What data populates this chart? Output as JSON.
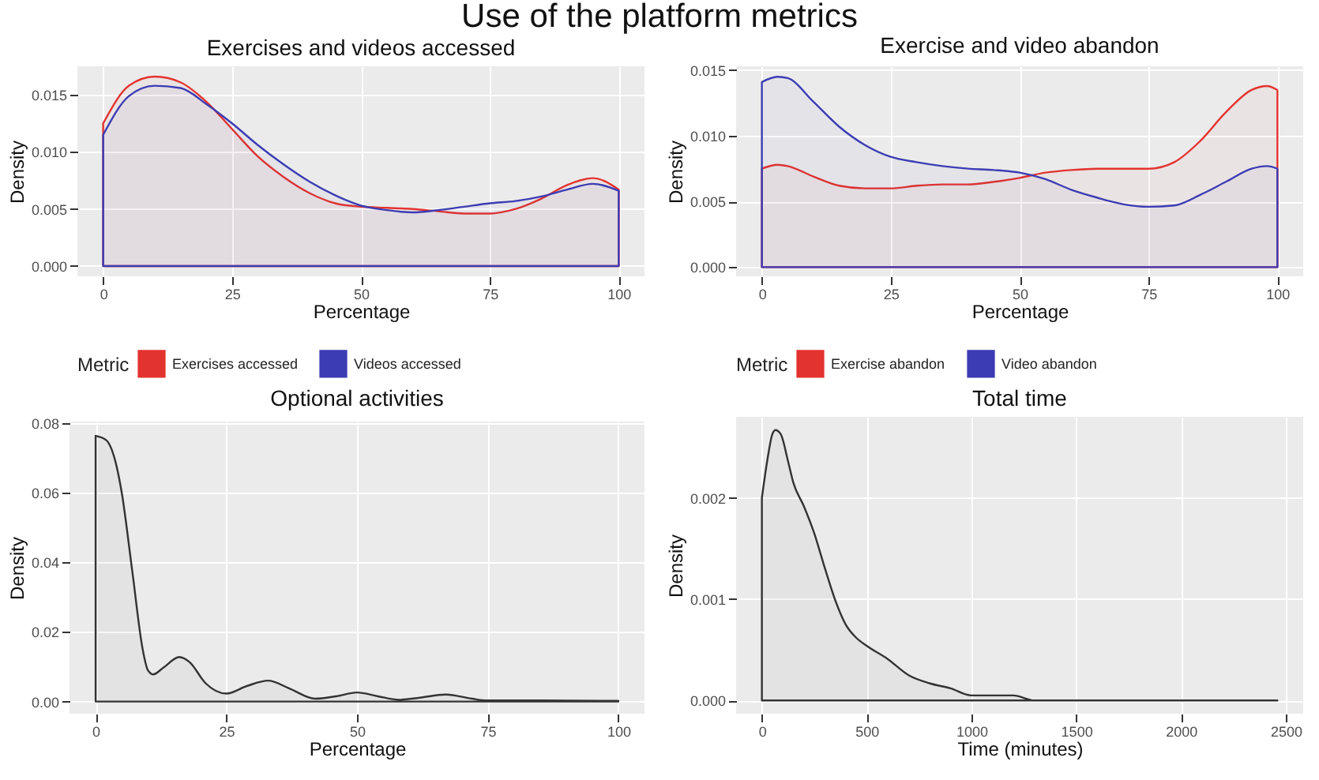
{
  "chart_data": [
    {
      "type": "area",
      "title": "Exercises and videos accessed",
      "xlabel": "Percentage",
      "ylabel": "Density",
      "legend_title": "Metric",
      "legend": "bottom",
      "grid": true,
      "annotations": [
        "Use of the platform metrics"
      ],
      "x": [
        0,
        5,
        10,
        15,
        20,
        25,
        30,
        35,
        40,
        45,
        50,
        55,
        60,
        65,
        70,
        75,
        80,
        85,
        90,
        95,
        100
      ],
      "xlim": [
        -5,
        105
      ],
      "xticks": [
        0,
        25,
        50,
        75,
        100
      ],
      "ylim": [
        -0.0009,
        0.0175
      ],
      "yticks": [
        {
          "value": 0,
          "label": "0.000"
        },
        0.005,
        {
          "value": 0.01,
          "label": "0.010"
        },
        0.015
      ],
      "series": [
        {
          "name": "Exercises accessed",
          "color": "#e3332f",
          "values": [
            0.0125,
            0.0158,
            0.0166,
            0.0161,
            0.0144,
            0.012,
            0.0096,
            0.0078,
            0.0064,
            0.0055,
            0.0052,
            0.0051,
            0.005,
            0.0048,
            0.0046,
            0.0046,
            0.005,
            0.0059,
            0.0071,
            0.0077,
            0.0067
          ]
        },
        {
          "name": "Videos accessed",
          "color": "#3c3cb4",
          "values": [
            0.0115,
            0.0149,
            0.0158,
            0.0156,
            0.0142,
            0.0125,
            0.0106,
            0.0089,
            0.0074,
            0.0062,
            0.0053,
            0.0049,
            0.0047,
            0.0049,
            0.0052,
            0.0055,
            0.0057,
            0.0061,
            0.0067,
            0.0072,
            0.0066
          ]
        }
      ]
    },
    {
      "type": "area",
      "title": "Exercise and video abandon",
      "xlabel": "Percentage",
      "ylabel": "Density",
      "legend_title": "Metric",
      "legend": "bottom",
      "grid": true,
      "x": [
        0,
        3,
        5,
        10,
        15,
        20,
        25,
        30,
        35,
        40,
        45,
        50,
        55,
        60,
        65,
        70,
        75,
        80,
        85,
        90,
        95,
        98,
        100
      ],
      "xlim": [
        -5,
        105
      ],
      "xticks": [
        0,
        25,
        50,
        75,
        100
      ],
      "ylim": [
        -0.0007,
        0.0153
      ],
      "yticks": [
        {
          "value": 0,
          "label": "0.000"
        },
        0.005,
        {
          "value": 0.01,
          "label": "0.010"
        },
        0.015
      ],
      "series": [
        {
          "name": "Exercise abandon",
          "color": "#e3332f",
          "values": [
            0.0075,
            0.0078,
            0.0077,
            0.0069,
            0.0062,
            0.006,
            0.006,
            0.0062,
            0.0063,
            0.0063,
            0.0065,
            0.0068,
            0.0072,
            0.0074,
            0.0075,
            0.0075,
            0.0075,
            0.008,
            0.0096,
            0.0118,
            0.0135,
            0.0138,
            0.0135
          ]
        },
        {
          "name": "Video abandon",
          "color": "#3c3cb4",
          "values": [
            0.0141,
            0.0145,
            0.0144,
            0.0126,
            0.0107,
            0.0093,
            0.0084,
            0.008,
            0.0077,
            0.0075,
            0.0074,
            0.0072,
            0.0067,
            0.0059,
            0.0053,
            0.0048,
            0.0046,
            0.0047,
            0.0055,
            0.0065,
            0.0075,
            0.0077,
            0.0075
          ]
        }
      ]
    },
    {
      "type": "area",
      "title": "Optional activities",
      "xlabel": "Percentage",
      "ylabel": "Density",
      "grid": true,
      "x": [
        0,
        2,
        4,
        5,
        7,
        9,
        10,
        11,
        13,
        16,
        18,
        21,
        25,
        29,
        33,
        37,
        42,
        46,
        50,
        54,
        58,
        62,
        67,
        72,
        75,
        85,
        100
      ],
      "xlim": [
        -5,
        105
      ],
      "xticks": [
        0,
        25,
        50,
        75,
        100
      ],
      "ylim": [
        -0.0035,
        0.0805
      ],
      "yticks": [
        {
          "value": 0,
          "label": "0.00"
        },
        {
          "value": 0.02,
          "label": "0.02"
        },
        {
          "value": 0.04,
          "label": "0.04"
        },
        {
          "value": 0.06,
          "label": "0.06"
        },
        {
          "value": 0.08,
          "label": "0.08"
        }
      ],
      "series": [
        {
          "color": "#333333",
          "values": [
            0.0764,
            0.0752,
            0.0677,
            0.06,
            0.0376,
            0.015,
            0.009,
            0.0078,
            0.0098,
            0.0128,
            0.0113,
            0.0053,
            0.0023,
            0.0045,
            0.006,
            0.0038,
            0.0008,
            0.0015,
            0.0026,
            0.0015,
            0.0005,
            0.0011,
            0.002,
            0.0008,
            0.0003,
            0.0003,
            0.0002
          ]
        }
      ]
    },
    {
      "type": "area",
      "title": "Total time",
      "xlabel": "Time (minutes)",
      "ylabel": "Density",
      "grid": true,
      "x": [
        0,
        25,
        50,
        65,
        90,
        125,
        150,
        200,
        250,
        300,
        350,
        400,
        450,
        500,
        600,
        700,
        800,
        900,
        1000,
        1100,
        1200,
        1300,
        1400,
        2400,
        2460
      ],
      "xlim": [
        -123,
        2583
      ],
      "xticks": [
        0,
        500,
        1000,
        1500,
        2000,
        2500
      ],
      "ylim": [
        -0.00013,
        0.0028
      ],
      "yticks": [
        {
          "value": 0,
          "label": "0.000"
        },
        0.001,
        0.002
      ],
      "series": [
        {
          "color": "#333333",
          "values": [
            0.002,
            0.00236,
            0.00263,
            0.00267,
            0.00263,
            0.00236,
            0.00215,
            0.00192,
            0.00165,
            0.00131,
            0.00099,
            0.00075,
            0.00062,
            0.00054,
            0.00041,
            0.00025,
            0.00017,
            0.00012,
            5e-05,
            5e-05,
            5e-05,
            0,
            0,
            0,
            0
          ]
        }
      ]
    }
  ]
}
